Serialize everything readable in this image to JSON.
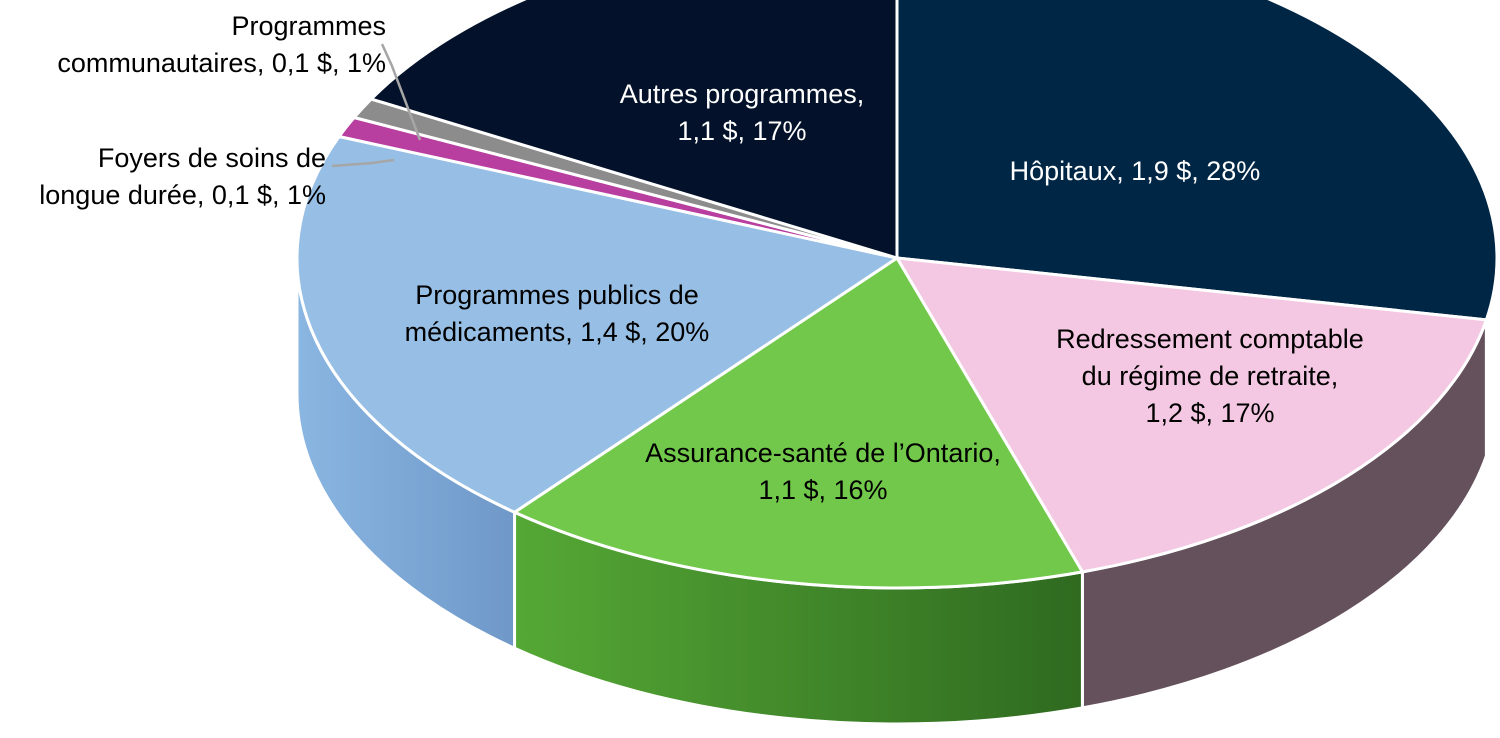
{
  "chart_data": {
    "type": "pie",
    "title": "",
    "unit": "$",
    "slices": [
      {
        "label_lines": [
          "Hôpitaux, 1,9 $, 28%"
        ],
        "name": "Hôpitaux",
        "value": 1.9,
        "percent": 28,
        "color": "#002646",
        "side_color": "#001a30",
        "text_color": "#ffffff"
      },
      {
        "label_lines": [
          "Redressement comptable",
          "du régime de retraite,",
          "1,2 $, 17%"
        ],
        "name": "Redressement comptable du régime de retraite",
        "value": 1.2,
        "percent": 17,
        "color": "#f4c8e2",
        "side_color": "#65515c",
        "text_color": "#000000"
      },
      {
        "label_lines": [
          "Assurance-santé de l’Ontario,",
          "1,1 $, 16%"
        ],
        "name": "Assurance-santé de l’Ontario",
        "value": 1.1,
        "percent": 16,
        "color": "#72c84a",
        "side_color": "#3a8a28",
        "text_color": "#000000"
      },
      {
        "label_lines": [
          "Programmes publics de",
          "médicaments, 1,4 $, 20%"
        ],
        "name": "Programmes publics de médicaments",
        "value": 1.4,
        "percent": 20,
        "color": "#97bfe5",
        "side_color": "#6f9ccd",
        "text_color": "#000000"
      },
      {
        "label_lines": [
          "Foyers de soins de",
          "longue durée, 0,1 $, 1%"
        ],
        "name": "Foyers de soins de longue durée",
        "value": 0.1,
        "percent": 1,
        "color": "#b83ea0",
        "side_color": "#7a2a6b",
        "text_color": "#000000"
      },
      {
        "label_lines": [
          "Programmes",
          "communautaires, 0,1 $, 1%"
        ],
        "name": "Programmes communautaires",
        "value": 0.1,
        "percent": 1,
        "color": "#8c8c8c",
        "side_color": "#606060",
        "text_color": "#000000"
      },
      {
        "label_lines": [
          "Autres programmes,",
          "1,1 $, 17%"
        ],
        "name": "Autres programmes",
        "value": 1.1,
        "percent": 17,
        "color": "#03122a",
        "side_color": "#020b1a",
        "text_color": "#ffffff"
      }
    ]
  }
}
